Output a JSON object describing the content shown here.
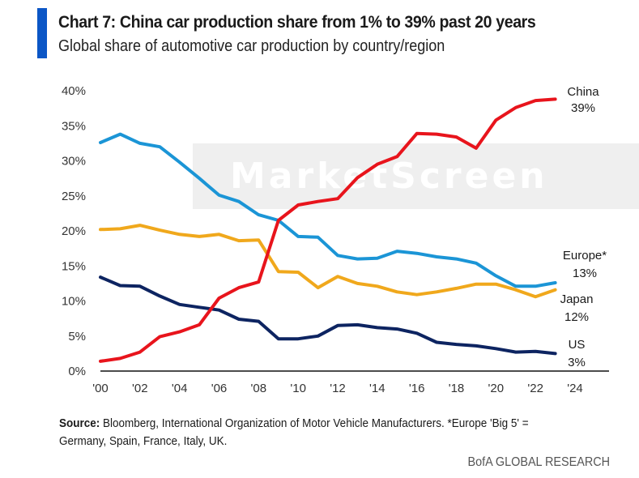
{
  "header": {
    "title": "Chart 7: China car production share from 1% to 39% past 20 years",
    "subtitle": "Global share of automotive car production by country/region"
  },
  "watermark": "MarketScreen",
  "footer": {
    "source_label": "Source:",
    "source_text": " Bloomberg, International Organization of Motor Vehicle Manufacturers. *Europe 'Big 5' = Germany, Spain, France, Italy, UK.",
    "brand": "BofA GLOBAL RESEARCH"
  },
  "chart_data": {
    "type": "line",
    "title": "Chart 7: China car production share from 1% to 39% past 20 years",
    "subtitle": "Global share of automotive car production by country/region",
    "xlabel": "",
    "ylabel": "",
    "x": [
      2000,
      2001,
      2002,
      2003,
      2004,
      2005,
      2006,
      2007,
      2008,
      2009,
      2010,
      2011,
      2012,
      2013,
      2014,
      2015,
      2016,
      2017,
      2018,
      2019,
      2020,
      2021,
      2022,
      2023
    ],
    "xlim": [
      2000,
      2024
    ],
    "x_ticks": [
      2000,
      2002,
      2004,
      2006,
      2008,
      2010,
      2012,
      2014,
      2016,
      2018,
      2020,
      2022,
      2024
    ],
    "x_tick_labels": [
      "'00",
      "'02",
      "'04",
      "'06",
      "'08",
      "'10",
      "'12",
      "'14",
      "'16",
      "'18",
      "'20",
      "'22",
      "'24"
    ],
    "ylim": [
      0,
      40
    ],
    "y_ticks": [
      0,
      5,
      10,
      15,
      20,
      25,
      30,
      35,
      40
    ],
    "y_tick_labels": [
      "0%",
      "5%",
      "10%",
      "15%",
      "20%",
      "25%",
      "30%",
      "35%",
      "40%"
    ],
    "grid": false,
    "legend": "end-of-line labels (right)",
    "series": [
      {
        "name": "China",
        "end_label": "39%",
        "color": "#e8141c",
        "values": [
          1.4,
          1.8,
          2.7,
          4.9,
          5.6,
          6.6,
          10.4,
          11.9,
          12.7,
          21.5,
          23.7,
          24.2,
          24.6,
          27.6,
          29.5,
          30.6,
          33.9,
          33.8,
          33.4,
          31.8,
          35.8,
          37.6,
          38.6,
          38.8
        ]
      },
      {
        "name": "Europe*",
        "end_label": "13%",
        "color": "#1b95d6",
        "values": [
          32.6,
          33.8,
          32.5,
          32.0,
          29.8,
          27.5,
          25.1,
          24.2,
          22.3,
          21.5,
          19.2,
          19.1,
          16.5,
          16.0,
          16.1,
          17.1,
          16.8,
          16.3,
          16.0,
          15.4,
          13.6,
          12.1,
          12.1,
          12.6
        ]
      },
      {
        "name": "Japan",
        "end_label": "12%",
        "color": "#f0a81c",
        "values": [
          20.2,
          20.3,
          20.8,
          20.1,
          19.5,
          19.2,
          19.5,
          18.6,
          18.7,
          14.2,
          14.1,
          11.9,
          13.5,
          12.5,
          12.1,
          11.3,
          10.9,
          11.3,
          11.8,
          12.4,
          12.4,
          11.6,
          10.6,
          11.6
        ]
      },
      {
        "name": "US",
        "end_label": "3%",
        "color": "#0d2461",
        "values": [
          13.4,
          12.2,
          12.1,
          10.7,
          9.5,
          9.1,
          8.7,
          7.4,
          7.1,
          4.6,
          4.6,
          5.0,
          6.5,
          6.6,
          6.2,
          6.0,
          5.4,
          4.1,
          3.8,
          3.6,
          3.2,
          2.7,
          2.8,
          2.5
        ]
      }
    ]
  }
}
